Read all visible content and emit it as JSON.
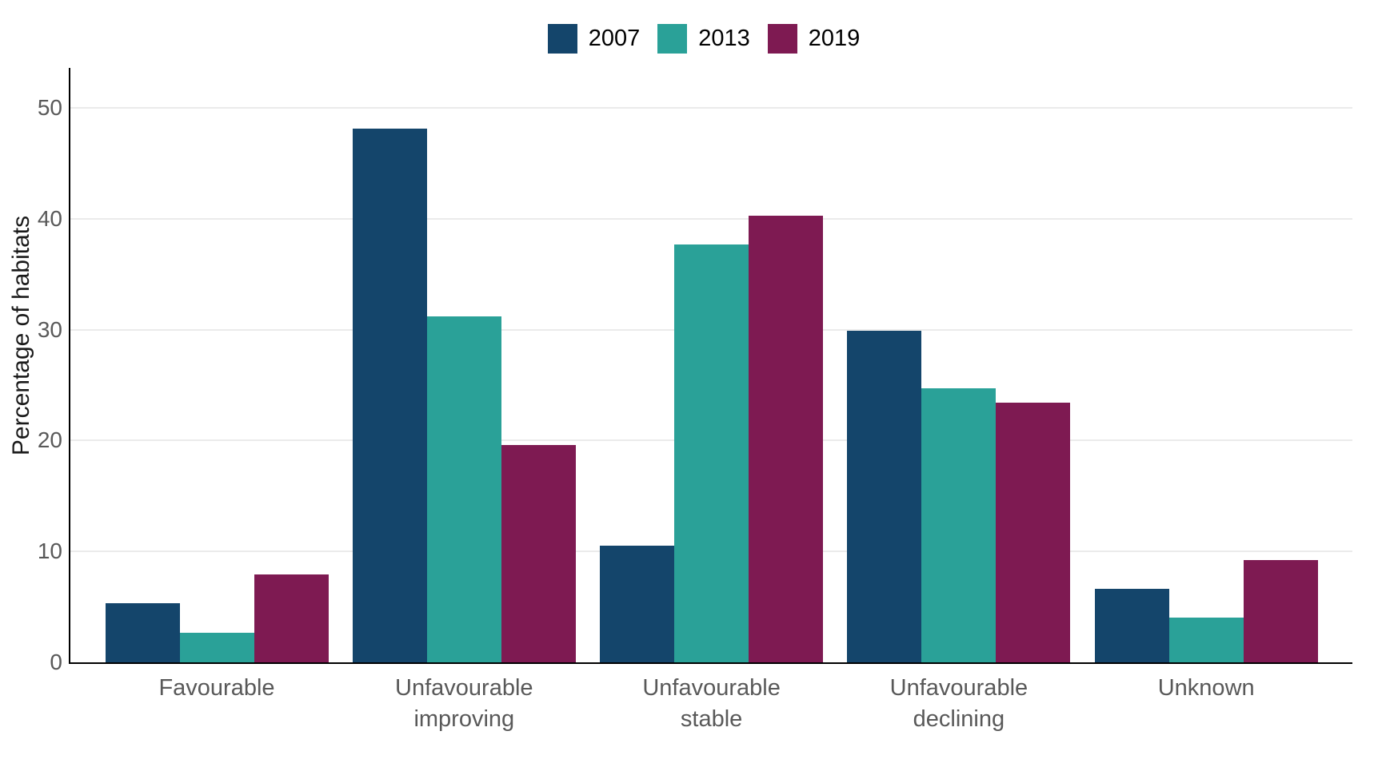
{
  "chart_data": {
    "type": "bar",
    "title": "",
    "categories": [
      "Favourable",
      "Unfavourable improving",
      "Unfavourable stable",
      "Unfavourable declining",
      "Unknown"
    ],
    "series": [
      {
        "name": "2007",
        "color": "#14456B",
        "values": [
          5.3,
          48.1,
          10.5,
          29.9,
          6.6
        ]
      },
      {
        "name": "2013",
        "color": "#2AA198",
        "values": [
          2.7,
          31.2,
          37.7,
          24.7,
          4.0
        ]
      },
      {
        "name": "2019",
        "color": "#7E1A52",
        "values": [
          7.9,
          19.6,
          40.3,
          23.4,
          9.2
        ]
      }
    ],
    "xlabel": "",
    "ylabel": "Percentage of habitats",
    "yticks": [
      0,
      10,
      20,
      30,
      40,
      50
    ],
    "ylim": [
      0,
      53.6
    ],
    "grid": "horizontal-major-only",
    "gridline_color": "#ebebeb",
    "axis_line_color": "#000000",
    "tick_label_color": "#595959",
    "legend_position": "top-center",
    "background_color": "#ffffff"
  }
}
